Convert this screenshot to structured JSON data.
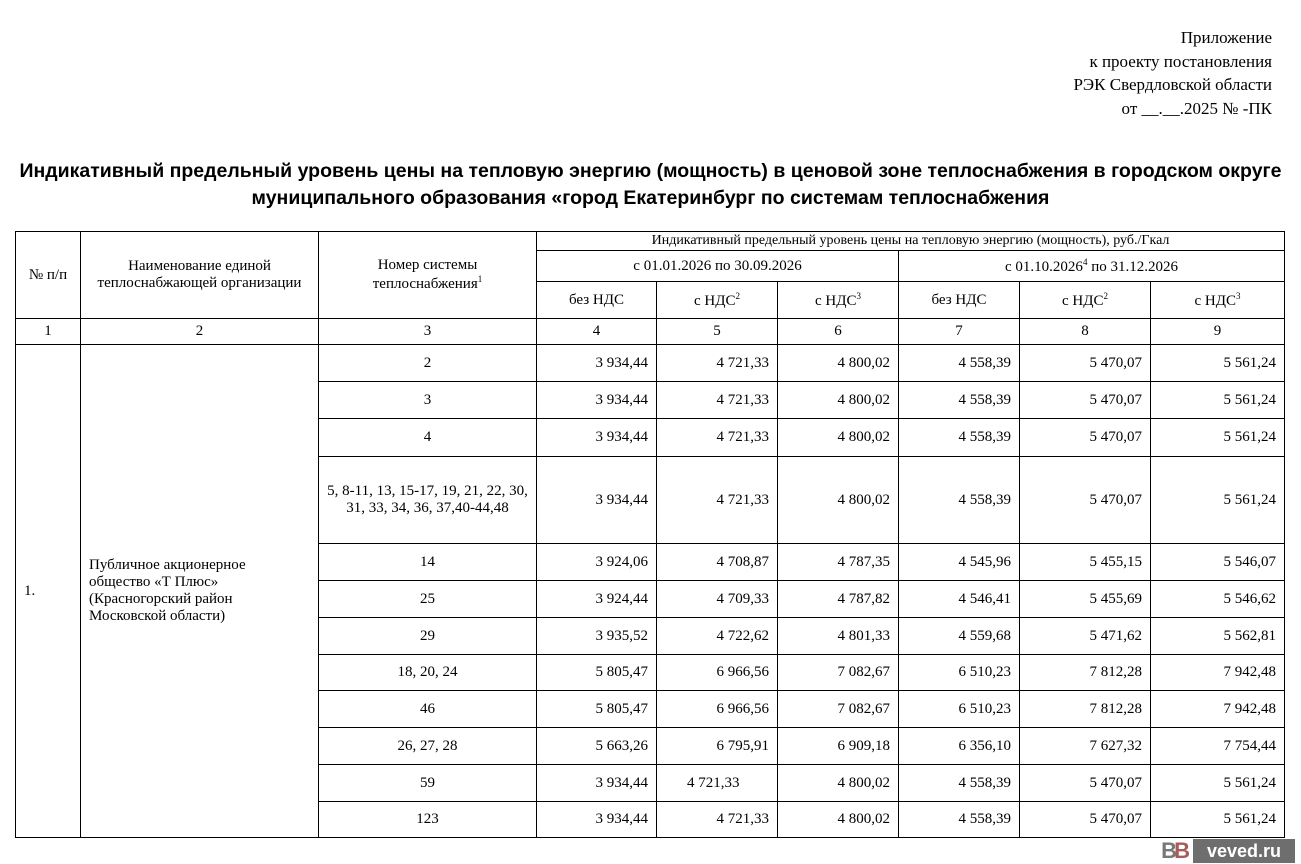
{
  "appendix": {
    "line1": "Приложение",
    "line2": "к проекту постановления",
    "line3": "РЭК Свердловской области",
    "line4": "от __.__.2025 №   -ПК"
  },
  "title": "Индикативный предельный уровень цены на тепловую энергию (мощность) в ценовой зоне теплоснабжения в городском округе муниципального образования «город Екатеринбург по системам теплоснабжения",
  "table": {
    "h_num": "№ п/п",
    "h_org": "Наименование единой теплоснабжающей организации",
    "h_sys": "Номер системы теплоснабжения",
    "h_sys_sup": "1",
    "h_price": "Индикативный предельный уровень цены на тепловую энергию (мощность), руб./Гкал",
    "period1": "с 01.01.2026 по 30.09.2026",
    "period2_a": "с 01.10.2026",
    "period2_sup": "4",
    "period2_b": " по 31.12.2026",
    "sub": [
      {
        "t": "без НДС",
        "s": ""
      },
      {
        "t": "с НДС",
        "s": "2"
      },
      {
        "t": "с НДС",
        "s": "3"
      },
      {
        "t": "без НДС",
        "s": ""
      },
      {
        "t": "с НДС",
        "s": "2"
      },
      {
        "t": "с НДС",
        "s": "3"
      }
    ],
    "col_numbers": [
      "1",
      "2",
      "3",
      "4",
      "5",
      "6",
      "7",
      "8",
      "9"
    ],
    "row_num": "1.",
    "org": "Публичное акционерное общество «Т Плюс» (Красногорский район Московской области)",
    "rows": [
      {
        "sys": "2",
        "v": [
          "3 934,44",
          "4 721,33",
          "4 800,02",
          "4 558,39",
          "5 470,07",
          "5 561,24"
        ]
      },
      {
        "sys": "3",
        "v": [
          "3 934,44",
          "4 721,33",
          "4 800,02",
          "4 558,39",
          "5 470,07",
          "5 561,24"
        ]
      },
      {
        "sys": "4",
        "v": [
          "3 934,44",
          "4 721,33",
          "4 800,02",
          "4 558,39",
          "5 470,07",
          "5 561,24"
        ]
      },
      {
        "sys": "5, 8-11, 13, 15-17, 19, 21, 22, 30, 31, 33, 34, 36, 37,40-44,48",
        "v": [
          "3 934,44",
          "4 721,33",
          "4 800,02",
          "4 558,39",
          "5 470,07",
          "5 561,24"
        ]
      },
      {
        "sys": "14",
        "v": [
          "3 924,06",
          "4 708,87",
          "4 787,35",
          "4 545,96",
          "5 455,15",
          "5 546,07"
        ]
      },
      {
        "sys": "25",
        "v": [
          "3 924,44",
          "4 709,33",
          "4 787,82",
          "4 546,41",
          "5 455,69",
          "5 546,62"
        ]
      },
      {
        "sys": "29",
        "v": [
          "3 935,52",
          "4 722,62",
          "4 801,33",
          "4 559,68",
          "5 471,62",
          "5 562,81"
        ]
      },
      {
        "sys": "18, 20, 24",
        "v": [
          "5 805,47",
          "6 966,56",
          "7 082,67",
          "6 510,23",
          "7 812,28",
          "7 942,48"
        ]
      },
      {
        "sys": "46",
        "v": [
          "5 805,47",
          "6 966,56",
          "7 082,67",
          "6 510,23",
          "7 812,28",
          "7 942,48"
        ]
      },
      {
        "sys": "26, 27, 28",
        "v": [
          "5 663,26",
          "6 795,91",
          "6 909,18",
          "6 356,10",
          "7 627,32",
          "7 754,44"
        ]
      },
      {
        "sys": "59",
        "v": [
          "3 934,44",
          "4 721,33",
          "4 800,02",
          "4 558,39",
          "5 470,07",
          "5 561,24"
        ]
      },
      {
        "sys": "123",
        "v": [
          "3 934,44",
          "4 721,33",
          "4 800,02",
          "4 558,39",
          "5 470,07",
          "5 561,24"
        ]
      }
    ]
  },
  "watermark": {
    "logo": "BB",
    "site": "veved.ru"
  }
}
